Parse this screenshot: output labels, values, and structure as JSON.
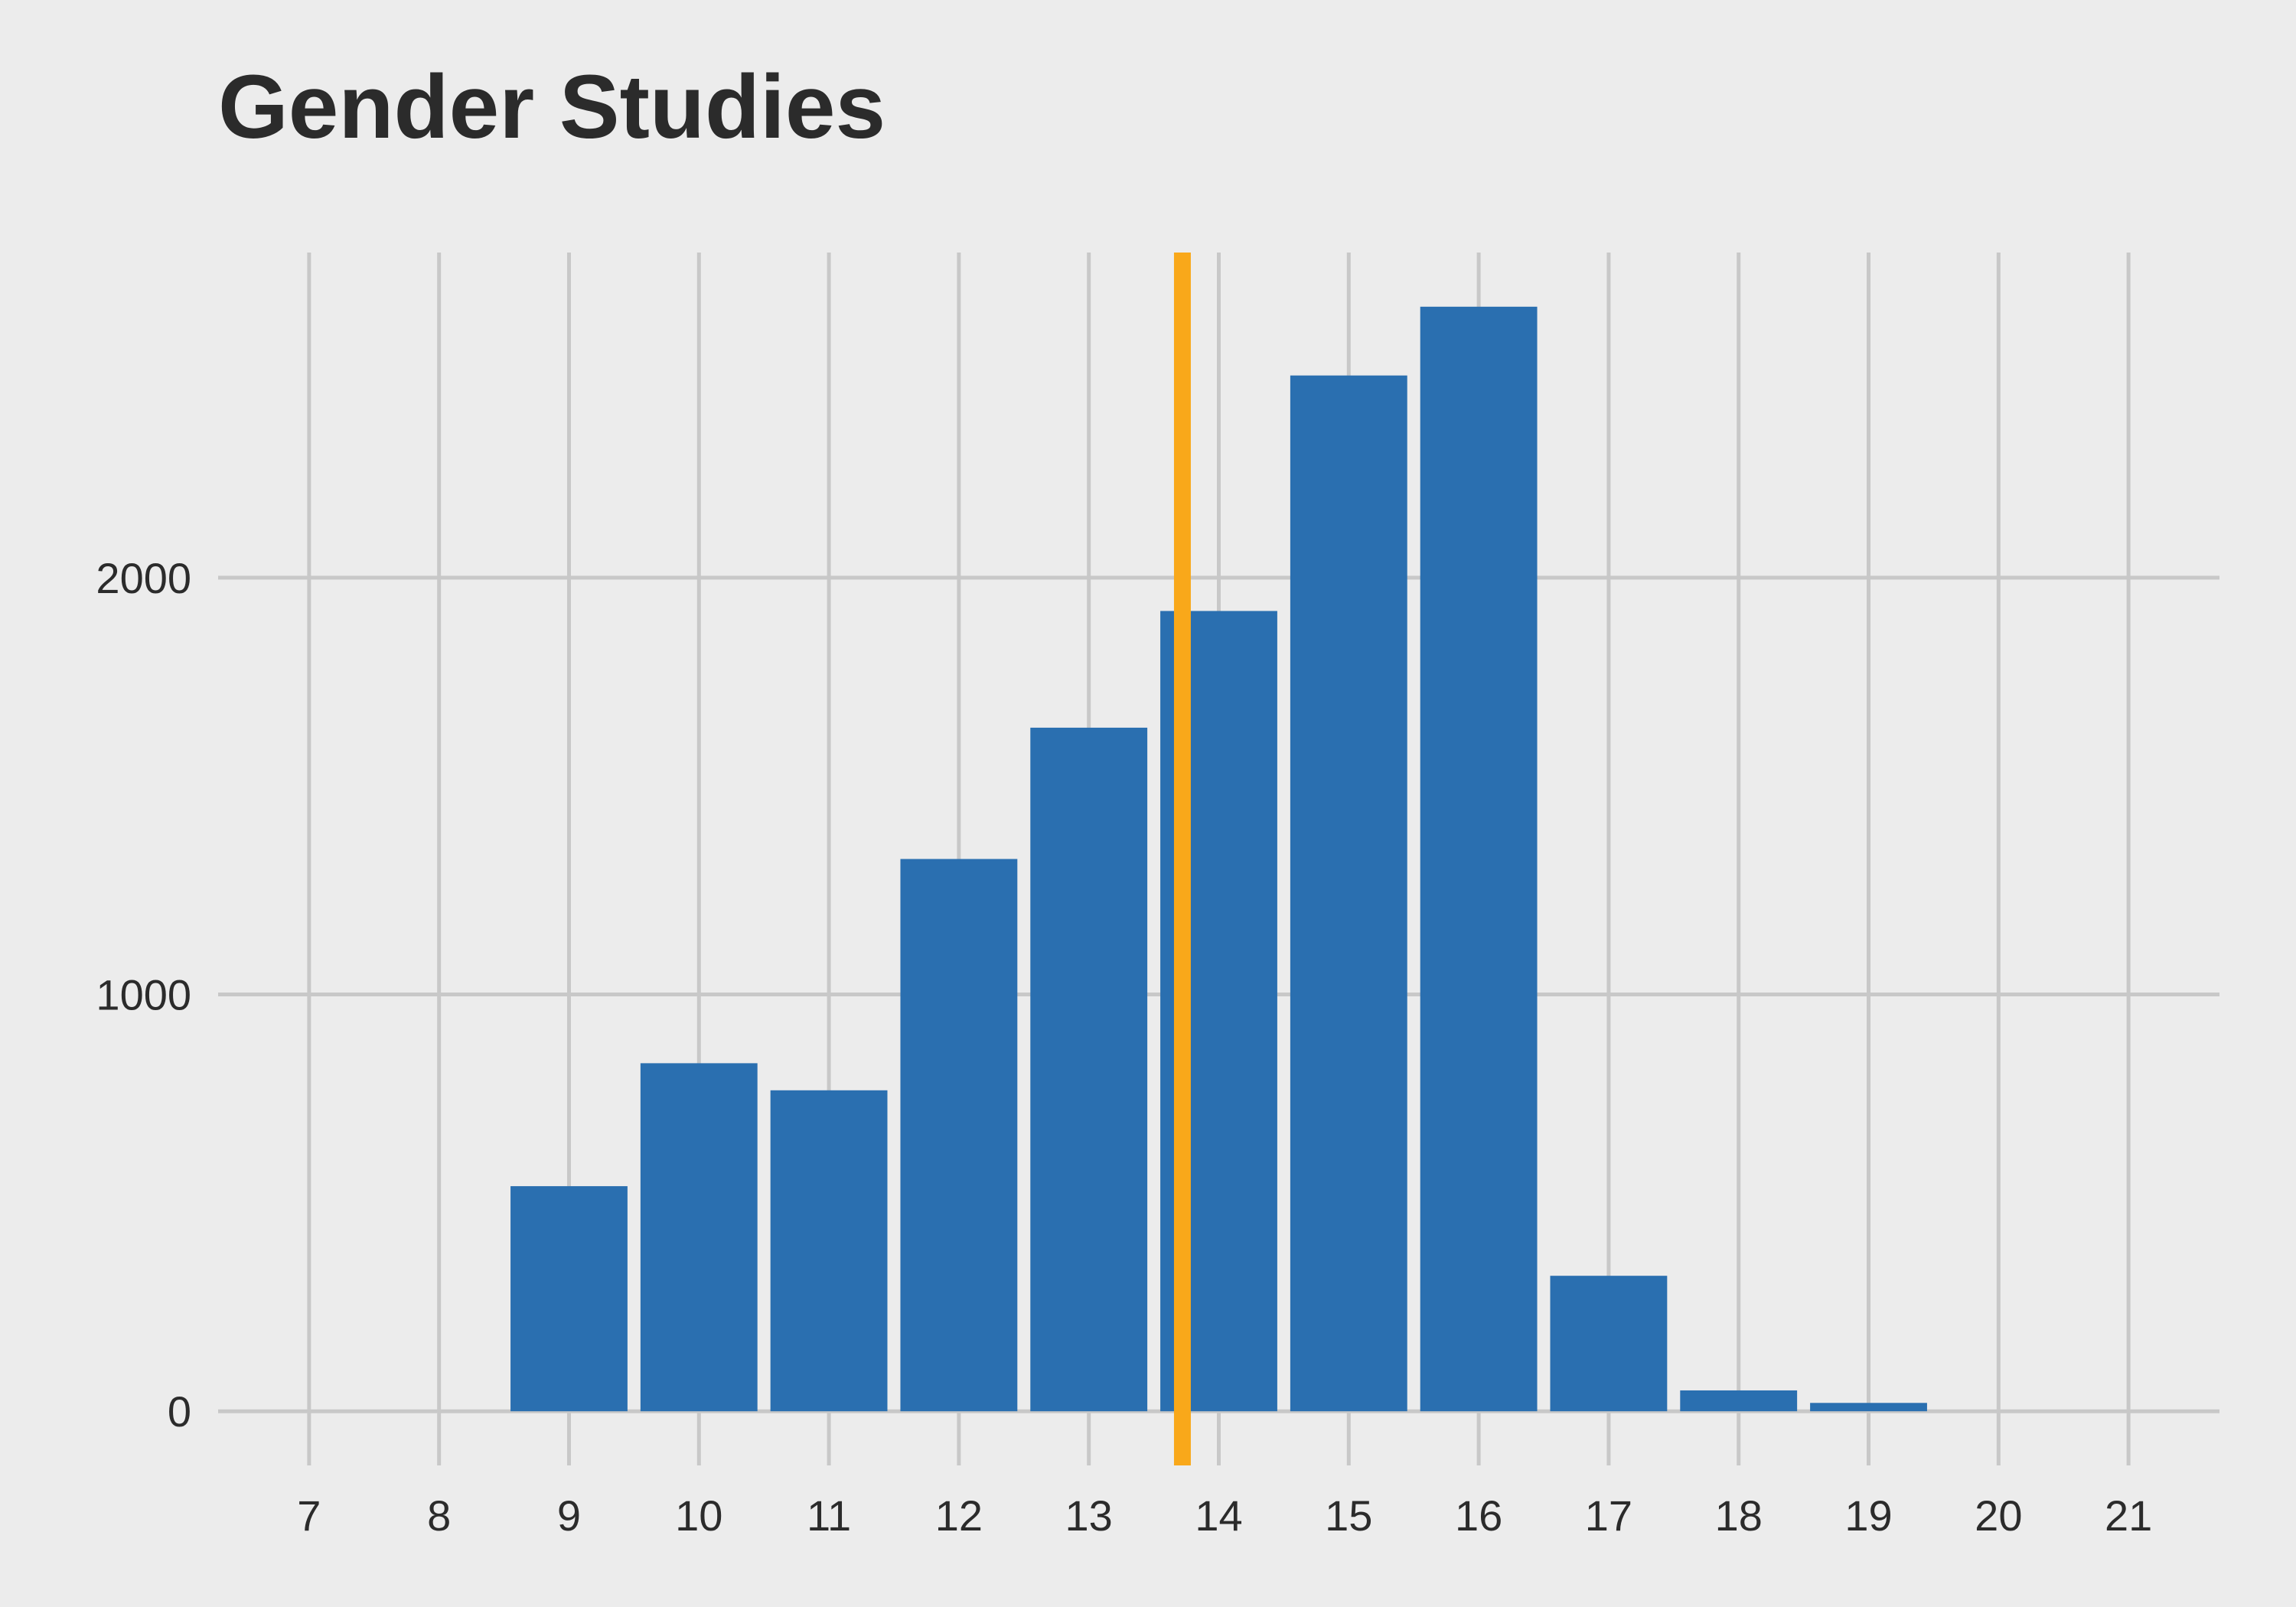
{
  "chart_data": {
    "type": "bar",
    "title": "Gender Studies",
    "xlabel": "",
    "ylabel": "",
    "x_ticks": [
      7,
      8,
      9,
      10,
      11,
      12,
      13,
      14,
      15,
      16,
      17,
      18,
      19,
      20,
      21
    ],
    "y_ticks": [
      0,
      1000,
      2000
    ],
    "xlim": [
      6.3,
      21.7
    ],
    "ylim": [
      -130,
      2780
    ],
    "categories": [
      9,
      10,
      11,
      12,
      13,
      14,
      15,
      16,
      17,
      18,
      19
    ],
    "values": [
      540,
      835,
      770,
      1325,
      1640,
      1920,
      2485,
      2650,
      325,
      50,
      20
    ],
    "bar_color": "#2a6fb0",
    "reference_line": {
      "x": 13.72,
      "color": "#f9a81a"
    },
    "grid": true,
    "grid_color": "#c8c8c8",
    "background": "#ececec"
  }
}
